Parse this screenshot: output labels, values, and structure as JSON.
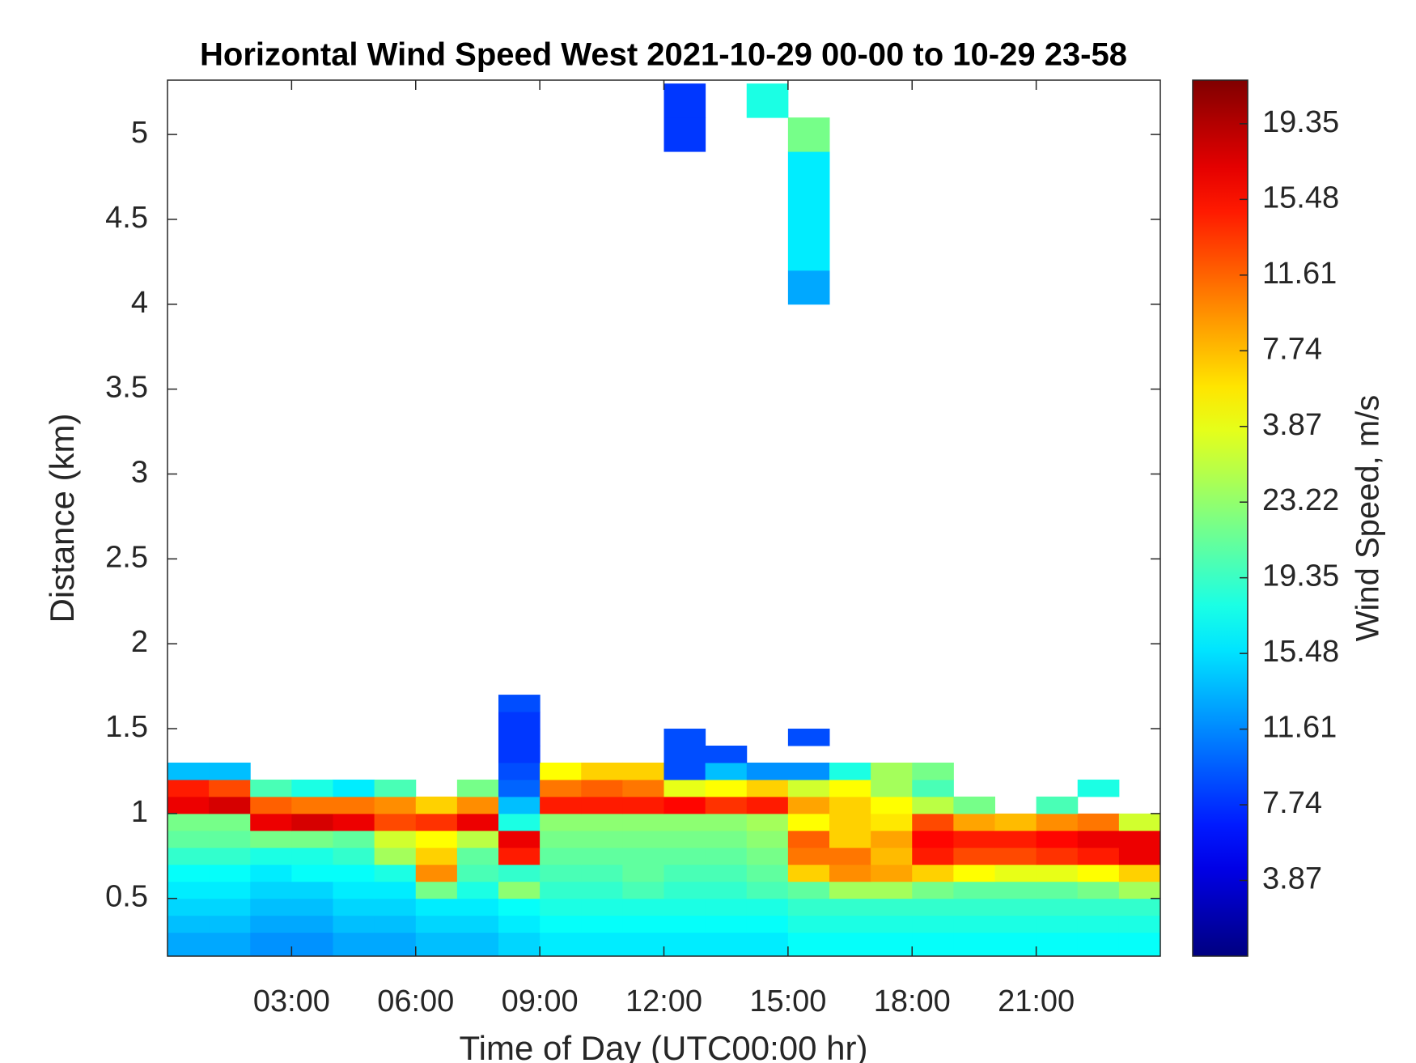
{
  "chart_data": {
    "type": "heatmap",
    "title": "Horizontal Wind Speed West 2021-10-29 00-00 to 10-29 23-58",
    "xlabel": "Time of Day (UTC00:00 hr)",
    "ylabel": "Distance (km)",
    "colorbar_label": "Wind Speed, m/s",
    "colormap": "jet",
    "xlim": [
      0,
      24
    ],
    "ylim": [
      0.16,
      5.32
    ],
    "xticks": [
      {
        "value": 3,
        "label": "03:00"
      },
      {
        "value": 6,
        "label": "06:00"
      },
      {
        "value": 9,
        "label": "09:00"
      },
      {
        "value": 12,
        "label": "12:00"
      },
      {
        "value": 15,
        "label": "15:00"
      },
      {
        "value": 18,
        "label": "18:00"
      },
      {
        "value": 21,
        "label": "21:00"
      }
    ],
    "yticks": [
      0.5,
      1,
      1.5,
      2,
      2.5,
      3,
      3.5,
      4,
      4.5,
      5
    ],
    "clim": [
      0,
      44.8
    ],
    "cticks": [
      3.87,
      7.74,
      11.61,
      15.48,
      19.35,
      23.22,
      {
        "value": 27.09,
        "label": "3.87"
      },
      {
        "value": 30.96,
        "label": "7.74"
      },
      {
        "value": 34.83,
        "label": "11.61"
      },
      {
        "value": 38.7,
        "label": "15.48"
      },
      {
        "value": 42.57,
        "label": "19.35"
      }
    ],
    "xbins": [
      0,
      1,
      2,
      3,
      4,
      5,
      6,
      7,
      8,
      9,
      10,
      11,
      12,
      13,
      14,
      15,
      16,
      17,
      18,
      19,
      20,
      21,
      22,
      23,
      24
    ],
    "ybins": [
      0.16,
      0.3,
      0.4,
      0.5,
      0.6,
      0.7,
      0.8,
      0.9,
      1.0,
      1.1,
      1.2,
      1.3,
      1.4,
      1.5,
      1.6,
      1.7,
      4.0,
      4.2,
      4.9,
      5.1,
      5.3
    ],
    "z": [
      [
        13,
        13,
        12,
        12,
        13,
        13,
        14,
        14,
        15,
        16,
        16,
        16,
        16,
        16,
        16,
        17,
        17,
        17,
        17,
        17,
        17,
        17,
        17,
        17
      ],
      [
        14,
        14,
        13,
        13,
        14,
        14,
        15,
        15,
        16,
        17,
        17,
        17,
        17,
        17,
        17,
        18,
        18,
        18,
        18,
        18,
        18,
        18,
        18,
        18
      ],
      [
        15,
        15,
        14,
        14,
        15,
        15,
        16,
        16,
        17,
        18,
        18,
        18,
        18,
        18,
        18,
        19,
        19,
        19,
        19,
        19,
        19,
        19,
        19,
        19
      ],
      [
        16,
        16,
        15,
        15,
        16,
        16,
        22,
        18,
        23,
        19,
        19,
        20,
        19,
        19,
        20,
        21,
        24,
        24,
        22,
        21,
        21,
        21,
        22,
        24
      ],
      [
        17,
        17,
        16,
        17,
        17,
        18,
        33,
        20,
        19,
        20,
        20,
        21,
        20,
        20,
        21,
        30,
        33,
        32,
        30,
        28,
        27,
        27,
        28,
        30
      ],
      [
        19,
        19,
        18,
        18,
        19,
        24,
        30,
        21,
        38,
        21,
        21,
        21,
        21,
        21,
        22,
        34,
        34,
        31,
        38,
        36,
        36,
        37,
        38,
        40
      ],
      [
        21,
        21,
        22,
        22,
        21,
        26,
        28,
        25,
        40,
        22,
        22,
        22,
        22,
        22,
        23,
        35,
        30,
        32,
        39,
        38,
        38,
        39,
        40,
        40
      ],
      [
        22,
        22,
        40,
        41,
        40,
        36,
        37,
        40,
        18,
        23,
        23,
        23,
        23,
        23,
        24,
        28,
        30,
        29,
        36,
        32,
        31,
        33,
        34,
        26
      ],
      [
        40,
        41,
        35,
        34,
        34,
        33,
        30,
        33,
        14,
        38,
        38,
        38,
        39,
        37,
        38,
        32,
        30,
        28,
        25,
        22,
        null,
        20,
        null,
        null
      ],
      [
        38,
        36,
        20,
        18,
        16,
        20,
        null,
        22,
        10,
        34,
        35,
        34,
        27,
        28,
        30,
        26,
        28,
        24,
        20,
        null,
        null,
        null,
        18,
        null
      ],
      [
        14,
        14,
        null,
        null,
        null,
        null,
        null,
        null,
        9,
        28,
        30,
        30,
        9,
        14,
        12,
        12,
        18,
        24,
        22,
        null,
        null,
        null,
        null,
        null
      ],
      [
        null,
        null,
        null,
        null,
        null,
        null,
        null,
        null,
        8,
        null,
        null,
        null,
        9,
        9,
        null,
        null,
        null,
        null,
        null,
        null,
        null,
        null,
        null,
        null
      ],
      [
        null,
        null,
        null,
        null,
        null,
        null,
        null,
        null,
        8,
        null,
        null,
        null,
        9,
        null,
        null,
        9,
        null,
        null,
        null,
        null,
        null,
        null,
        null,
        null
      ],
      [
        null,
        null,
        null,
        null,
        null,
        null,
        null,
        null,
        8,
        null,
        null,
        null,
        null,
        null,
        null,
        null,
        null,
        null,
        null,
        null,
        null,
        null,
        null,
        null
      ],
      [
        null,
        null,
        null,
        null,
        null,
        null,
        null,
        null,
        9,
        null,
        null,
        null,
        null,
        null,
        null,
        null,
        null,
        null,
        null,
        null,
        null,
        null,
        null,
        null
      ],
      [
        null,
        null,
        null,
        null,
        null,
        null,
        null,
        null,
        null,
        null,
        null,
        null,
        null,
        null,
        null,
        null,
        null,
        null,
        null,
        null,
        null,
        null,
        null,
        null
      ],
      [
        null,
        null,
        null,
        null,
        null,
        null,
        null,
        null,
        null,
        null,
        null,
        null,
        null,
        null,
        null,
        13,
        null,
        null,
        null,
        null,
        null,
        null,
        null,
        null
      ],
      [
        null,
        null,
        null,
        null,
        null,
        null,
        null,
        null,
        null,
        null,
        null,
        null,
        null,
        null,
        null,
        16,
        null,
        null,
        null,
        null,
        null,
        null,
        null,
        null
      ],
      [
        null,
        null,
        null,
        null,
        null,
        null,
        null,
        null,
        null,
        null,
        null,
        null,
        8,
        null,
        null,
        22,
        null,
        null,
        null,
        null,
        null,
        null,
        null,
        null
      ],
      [
        null,
        null,
        null,
        null,
        null,
        null,
        null,
        null,
        null,
        null,
        null,
        null,
        8,
        null,
        18,
        null,
        null,
        null,
        null,
        null,
        null,
        null,
        null,
        null
      ]
    ]
  }
}
